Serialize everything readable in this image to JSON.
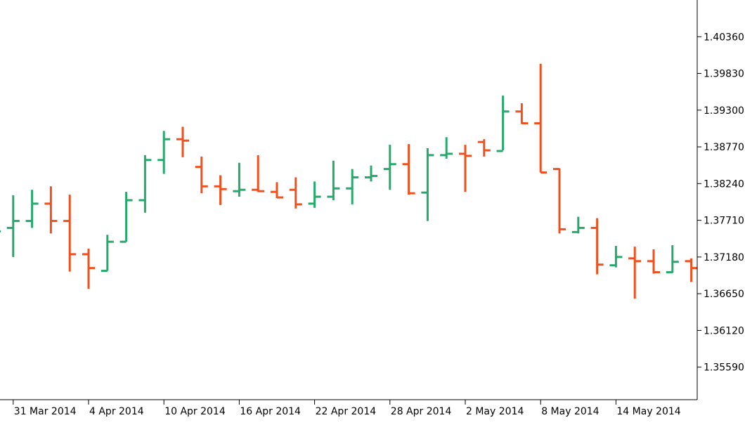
{
  "chart_data": {
    "type": "ohlc",
    "ylim": [
      1.3512,
      1.4089
    ],
    "y_ticks": [
      "1.40360",
      "1.39830",
      "1.39300",
      "1.38770",
      "1.38240",
      "1.37710",
      "1.37180",
      "1.36650",
      "1.36120",
      "1.35590"
    ],
    "x_ticks": [
      "31 Mar 2014",
      "4 Apr 2014",
      "10 Apr 2014",
      "16 Apr 2014",
      "22 Apr 2014",
      "28 Apr 2014",
      "2 May 2014",
      "8 May 2014",
      "14 May 2014"
    ],
    "x_tick_bar_index": [
      1,
      5,
      9,
      13,
      17,
      21,
      25,
      29,
      33
    ],
    "colors": {
      "up": "#26a96c",
      "down": "#f0501e",
      "axis": "#000000"
    },
    "grid": false,
    "bars": [
      {
        "o": 1.3745,
        "h": 1.376,
        "l": 1.374,
        "c": 1.3755
      },
      {
        "o": 1.376,
        "h": 1.3807,
        "l": 1.3718,
        "c": 1.377
      },
      {
        "o": 1.377,
        "h": 1.3815,
        "l": 1.376,
        "c": 1.3795
      },
      {
        "o": 1.3795,
        "h": 1.382,
        "l": 1.3752,
        "c": 1.377
      },
      {
        "o": 1.377,
        "h": 1.3808,
        "l": 1.3697,
        "c": 1.3722
      },
      {
        "o": 1.3722,
        "h": 1.373,
        "l": 1.3672,
        "c": 1.3702
      },
      {
        "o": 1.3698,
        "h": 1.375,
        "l": 1.3698,
        "c": 1.374
      },
      {
        "o": 1.374,
        "h": 1.3812,
        "l": 1.374,
        "c": 1.38
      },
      {
        "o": 1.38,
        "h": 1.3865,
        "l": 1.3782,
        "c": 1.3858
      },
      {
        "o": 1.3858,
        "h": 1.39,
        "l": 1.3838,
        "c": 1.3888
      },
      {
        "o": 1.3888,
        "h": 1.3906,
        "l": 1.3862,
        "c": 1.3886
      },
      {
        "o": 1.3848,
        "h": 1.3863,
        "l": 1.381,
        "c": 1.382
      },
      {
        "o": 1.382,
        "h": 1.3836,
        "l": 1.3793,
        "c": 1.3816
      },
      {
        "o": 1.3813,
        "h": 1.3854,
        "l": 1.3805,
        "c": 1.3815
      },
      {
        "o": 1.3815,
        "h": 1.3865,
        "l": 1.3812,
        "c": 1.3813
      },
      {
        "o": 1.3812,
        "h": 1.3826,
        "l": 1.3803,
        "c": 1.3804
      },
      {
        "o": 1.3815,
        "h": 1.3833,
        "l": 1.3788,
        "c": 1.3794
      },
      {
        "o": 1.3795,
        "h": 1.3827,
        "l": 1.3789,
        "c": 1.3805
      },
      {
        "o": 1.3805,
        "h": 1.3857,
        "l": 1.38,
        "c": 1.3817
      },
      {
        "o": 1.3817,
        "h": 1.3845,
        "l": 1.3794,
        "c": 1.3833
      },
      {
        "o": 1.3833,
        "h": 1.385,
        "l": 1.3827,
        "c": 1.3835
      },
      {
        "o": 1.3845,
        "h": 1.388,
        "l": 1.3815,
        "c": 1.3852
      },
      {
        "o": 1.3852,
        "h": 1.3881,
        "l": 1.3808,
        "c": 1.381
      },
      {
        "o": 1.3811,
        "h": 1.3875,
        "l": 1.377,
        "c": 1.3865
      },
      {
        "o": 1.3865,
        "h": 1.3891,
        "l": 1.386,
        "c": 1.3867
      },
      {
        "o": 1.3867,
        "h": 1.388,
        "l": 1.3812,
        "c": 1.3864
      },
      {
        "o": 1.3884,
        "h": 1.3888,
        "l": 1.3863,
        "c": 1.3872
      },
      {
        "o": 1.3871,
        "h": 1.3951,
        "l": 1.3872,
        "c": 1.3928
      },
      {
        "o": 1.3928,
        "h": 1.394,
        "l": 1.391,
        "c": 1.3911
      },
      {
        "o": 1.3911,
        "h": 1.3997,
        "l": 1.384,
        "c": 1.384
      },
      {
        "o": 1.3845,
        "h": 1.3846,
        "l": 1.3752,
        "c": 1.3758
      },
      {
        "o": 1.3754,
        "h": 1.3776,
        "l": 1.3752,
        "c": 1.376
      },
      {
        "o": 1.376,
        "h": 1.3774,
        "l": 1.3693,
        "c": 1.3707
      },
      {
        "o": 1.3706,
        "h": 1.3734,
        "l": 1.3703,
        "c": 1.3718
      },
      {
        "o": 1.3716,
        "h": 1.3733,
        "l": 1.3658,
        "c": 1.3712
      },
      {
        "o": 1.3712,
        "h": 1.3729,
        "l": 1.3694,
        "c": 1.3696
      },
      {
        "o": 1.3696,
        "h": 1.3735,
        "l": 1.3695,
        "c": 1.3711
      },
      {
        "o": 1.3712,
        "h": 1.3716,
        "l": 1.3682,
        "c": 1.3702
      }
    ]
  }
}
